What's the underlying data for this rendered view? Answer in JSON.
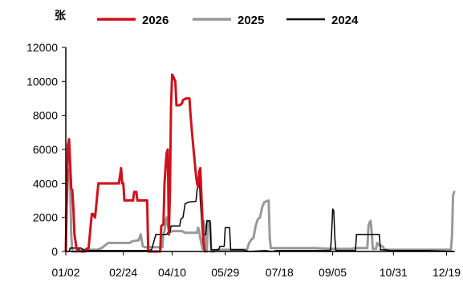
{
  "chart_data": {
    "type": "line",
    "ylabel": "张",
    "ylim": [
      0,
      12000
    ],
    "y_ticks": [
      0,
      2000,
      4000,
      6000,
      8000,
      10000,
      12000
    ],
    "y_tick_labels": [
      "0",
      "2000",
      "4000",
      "6000",
      "8000",
      "10000",
      "12000"
    ],
    "x_range": [
      1,
      359
    ],
    "x_ticks": [
      {
        "day": 1,
        "label": "01/02"
      },
      {
        "day": 54,
        "label": "02/24"
      },
      {
        "day": 99,
        "label": "04/10"
      },
      {
        "day": 148,
        "label": "05/29"
      },
      {
        "day": 198,
        "label": "07/18"
      },
      {
        "day": 247,
        "label": "09/05"
      },
      {
        "day": 303,
        "label": "10/31"
      },
      {
        "day": 352,
        "label": "12/19"
      }
    ],
    "legend_position": "top",
    "grid": false,
    "series": [
      {
        "name": "2026",
        "color": "#d0111b",
        "width": 3,
        "points": [
          [
            1,
            0
          ],
          [
            2,
            3500
          ],
          [
            3,
            6300
          ],
          [
            4,
            6600
          ],
          [
            5,
            5200
          ],
          [
            6,
            3700
          ],
          [
            7,
            3600
          ],
          [
            8,
            2500
          ],
          [
            9,
            1000
          ],
          [
            11,
            150
          ],
          [
            13,
            100
          ],
          [
            15,
            0
          ],
          [
            19,
            0
          ],
          [
            20,
            150
          ],
          [
            22,
            200
          ],
          [
            25,
            2200
          ],
          [
            26,
            2200
          ],
          [
            28,
            2000
          ],
          [
            31,
            4000
          ],
          [
            50,
            4000
          ],
          [
            52,
            4900
          ],
          [
            53,
            4000
          ],
          [
            54,
            4000
          ],
          [
            55,
            3000
          ],
          [
            63,
            3000
          ],
          [
            64,
            3500
          ],
          [
            66,
            3500
          ],
          [
            67,
            3000
          ],
          [
            73,
            3000
          ],
          [
            76,
            3000
          ],
          [
            77,
            0
          ],
          [
            88,
            0
          ],
          [
            89,
            1500
          ],
          [
            91,
            1600
          ],
          [
            92,
            4000
          ],
          [
            93,
            5000
          ],
          [
            94,
            5800
          ],
          [
            95,
            6000
          ],
          [
            96,
            1000
          ],
          [
            97,
            3500
          ],
          [
            98,
            8500
          ],
          [
            99,
            10400
          ],
          [
            100,
            10300
          ],
          [
            102,
            10000
          ],
          [
            103,
            8600
          ],
          [
            106,
            8600
          ],
          [
            108,
            8700
          ],
          [
            109,
            8900
          ],
          [
            112,
            9000
          ],
          [
            115,
            9000
          ],
          [
            116,
            8000
          ],
          [
            118,
            6500
          ],
          [
            121,
            4500
          ],
          [
            122,
            4000
          ],
          [
            123,
            3800
          ],
          [
            124,
            4700
          ],
          [
            125,
            4900
          ],
          [
            126,
            3300
          ],
          [
            127,
            1900
          ],
          [
            128,
            500
          ],
          [
            129,
            0
          ]
        ]
      },
      {
        "name": "2025",
        "color": "#999999",
        "width": 3,
        "points": [
          [
            1,
            2000
          ],
          [
            2,
            3000
          ],
          [
            3,
            4500
          ],
          [
            4,
            4800
          ],
          [
            5,
            4300
          ],
          [
            6,
            1000
          ],
          [
            7,
            0
          ],
          [
            13,
            0
          ],
          [
            17,
            100
          ],
          [
            30,
            100
          ],
          [
            34,
            200
          ],
          [
            40,
            500
          ],
          [
            60,
            500
          ],
          [
            62,
            600
          ],
          [
            68,
            650
          ],
          [
            70,
            1000
          ],
          [
            72,
            300
          ],
          [
            74,
            250
          ],
          [
            90,
            250
          ],
          [
            91,
            1000
          ],
          [
            92,
            1200
          ],
          [
            93,
            1800
          ],
          [
            94,
            2000
          ],
          [
            95,
            1500
          ],
          [
            96,
            1300
          ],
          [
            97,
            1150
          ],
          [
            100,
            1200
          ],
          [
            108,
            1200
          ],
          [
            111,
            1100
          ],
          [
            122,
            1100
          ],
          [
            123,
            1400
          ],
          [
            124,
            1200
          ],
          [
            125,
            800
          ],
          [
            127,
            150
          ],
          [
            128,
            1800
          ],
          [
            129,
            1500
          ],
          [
            130,
            0
          ],
          [
            131,
            0
          ],
          [
            132,
            1800
          ],
          [
            134,
            1700
          ],
          [
            135,
            0
          ],
          [
            138,
            0
          ],
          [
            140,
            100
          ],
          [
            168,
            100
          ],
          [
            169,
            300
          ],
          [
            170,
            500
          ],
          [
            172,
            700
          ],
          [
            174,
            800
          ],
          [
            176,
            1500
          ],
          [
            178,
            1900
          ],
          [
            180,
            2000
          ],
          [
            182,
            2600
          ],
          [
            184,
            2900
          ],
          [
            188,
            3000
          ],
          [
            189,
            800
          ],
          [
            190,
            200
          ],
          [
            230,
            200
          ],
          [
            245,
            150
          ],
          [
            265,
            150
          ],
          [
            267,
            200
          ],
          [
            279,
            200
          ],
          [
            280,
            1500
          ],
          [
            281,
            1700
          ],
          [
            282,
            1800
          ],
          [
            283,
            1100
          ],
          [
            284,
            150
          ],
          [
            287,
            150
          ],
          [
            288,
            500
          ],
          [
            289,
            400
          ],
          [
            293,
            300
          ],
          [
            295,
            100
          ],
          [
            356,
            100
          ],
          [
            357,
            900
          ],
          [
            358,
            3300
          ],
          [
            359,
            3500
          ]
        ]
      },
      {
        "name": "2024",
        "color": "#000000",
        "width": 1.5,
        "points": [
          [
            1,
            0
          ],
          [
            4,
            0
          ],
          [
            5,
            200
          ],
          [
            15,
            200
          ],
          [
            17,
            100
          ],
          [
            22,
            50
          ],
          [
            75,
            50
          ],
          [
            80,
            100
          ],
          [
            84,
            1000
          ],
          [
            94,
            1000
          ],
          [
            95,
            1100
          ],
          [
            97,
            1100
          ],
          [
            98,
            1500
          ],
          [
            106,
            1500
          ],
          [
            107,
            1900
          ],
          [
            109,
            2000
          ],
          [
            111,
            2800
          ],
          [
            114,
            2900
          ],
          [
            121,
            2950
          ],
          [
            122,
            3600
          ],
          [
            123,
            3900
          ],
          [
            124,
            4500
          ],
          [
            125,
            3000
          ],
          [
            126,
            2000
          ],
          [
            127,
            1000
          ],
          [
            130,
            1000
          ],
          [
            131,
            1800
          ],
          [
            134,
            1800
          ],
          [
            135,
            100
          ],
          [
            142,
            100
          ],
          [
            143,
            300
          ],
          [
            147,
            300
          ],
          [
            148,
            1400
          ],
          [
            152,
            1400
          ],
          [
            153,
            100
          ],
          [
            165,
            100
          ],
          [
            169,
            0
          ],
          [
            185,
            50
          ],
          [
            191,
            0
          ],
          [
            195,
            50
          ],
          [
            245,
            50
          ],
          [
            246,
            1000
          ],
          [
            247,
            2500
          ],
          [
            248,
            2400
          ],
          [
            249,
            800
          ],
          [
            250,
            50
          ],
          [
            268,
            50
          ],
          [
            269,
            1000
          ],
          [
            290,
            1000
          ],
          [
            291,
            100
          ],
          [
            296,
            100
          ],
          [
            300,
            50
          ],
          [
            335,
            50
          ],
          [
            359,
            0
          ]
        ]
      }
    ]
  }
}
